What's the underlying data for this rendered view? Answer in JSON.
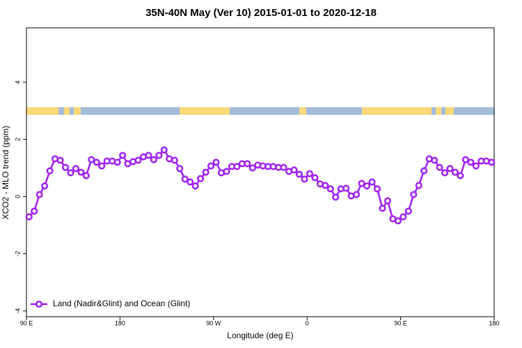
{
  "chart_data": {
    "type": "line",
    "title": "35N-40N May (Ver 10)   2015-01-01 to 2020-12-18",
    "x_label": "Longitude (deg E)",
    "y_label": "XCO2 - MLO trend (ppm)",
    "xlim": [
      90,
      540
    ],
    "ylim": [
      -4.2,
      5.9
    ],
    "xticks": [
      {
        "value": 90,
        "label": "90 E"
      },
      180,
      {
        "value": 270,
        "label": "90 W"
      },
      {
        "value": 360,
        "label": "0"
      },
      {
        "value": 450,
        "label": "90 E"
      },
      {
        "value": 540,
        "label": "180"
      }
    ],
    "yticks": [
      -4,
      -2,
      0,
      2,
      4
    ],
    "legend": "bottom-left",
    "x": [
      92.5,
      97.5,
      102.5,
      107.5,
      112.5,
      117.5,
      122.5,
      127.5,
      132.5,
      137.5,
      142.5,
      147.5,
      152.5,
      157.5,
      162.5,
      167.5,
      172.5,
      177.5,
      182.5,
      187.5,
      192.5,
      197.5,
      202.5,
      207.5,
      212.5,
      217.5,
      222.5,
      227.5,
      232.5,
      237.5,
      242.5,
      247.5,
      252.5,
      257.5,
      262.5,
      267.5,
      272.5,
      277.5,
      282.5,
      287.5,
      292.5,
      297.5,
      302.5,
      307.5,
      312.5,
      317.5,
      322.5,
      327.5,
      332.5,
      337.5,
      342.5,
      347.5,
      352.5,
      357.5,
      362.5,
      367.5,
      372.5,
      377.5,
      382.5,
      387.5,
      392.5,
      397.5,
      402.5,
      407.5,
      412.5,
      417.5,
      422.5,
      427.5,
      432.5,
      437.5,
      442.5,
      447.5,
      452.5,
      457.5,
      462.5,
      467.5,
      472.5,
      477.5,
      482.5,
      487.5,
      492.5,
      497.5,
      502.5,
      507.5,
      512.5,
      517.5,
      522.5,
      527.5,
      532.5,
      537.5
    ],
    "series": [
      {
        "name": "Land (Nadir&Glint) and Ocean (Glint)",
        "color": "#a020f0",
        "values": [
          -0.71,
          -0.51,
          0.07,
          0.37,
          0.9,
          1.32,
          1.27,
          1.02,
          0.83,
          0.98,
          0.85,
          0.73,
          1.29,
          1.2,
          1.07,
          1.24,
          1.24,
          1.2,
          1.44,
          1.15,
          1.22,
          1.27,
          1.39,
          1.44,
          1.29,
          1.44,
          1.63,
          1.32,
          1.27,
          0.98,
          0.61,
          0.51,
          0.37,
          0.63,
          0.85,
          1.07,
          1.2,
          0.83,
          0.88,
          1.05,
          1.05,
          1.15,
          1.15,
          1.0,
          1.1,
          1.07,
          1.05,
          1.05,
          1.02,
          1.02,
          0.88,
          0.93,
          0.78,
          0.61,
          0.8,
          0.66,
          0.44,
          0.39,
          0.27,
          -0.02,
          0.27,
          0.29,
          0.02,
          0.07,
          0.46,
          0.37,
          0.51,
          0.27,
          -0.41,
          -0.15,
          -0.78,
          -0.85,
          -0.71,
          -0.51,
          0.07,
          0.39,
          0.9,
          1.32,
          1.27,
          1.02,
          0.83,
          0.98,
          0.85,
          0.73,
          1.29,
          1.2,
          1.07,
          1.24,
          1.24,
          1.2
        ]
      }
    ]
  }
}
